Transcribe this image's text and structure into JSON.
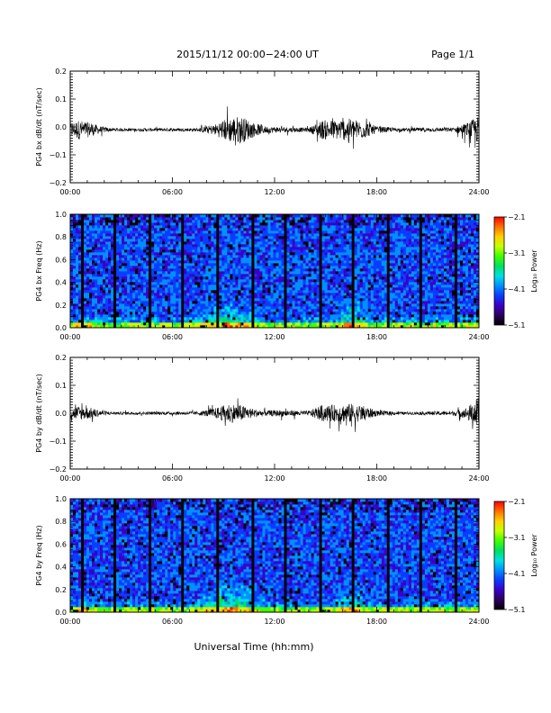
{
  "header": {
    "title": "2015/11/12  00:00−24:00 UT",
    "page": "Page 1/1"
  },
  "colorbar_colors": [
    "#000000",
    "#2a0060",
    "#3b00c8",
    "#0a3cff",
    "#0090ff",
    "#00e0e0",
    "#00e060",
    "#40ff00",
    "#c8ff00",
    "#ffd000",
    "#ff7000",
    "#ff0000"
  ],
  "chart_data": [
    {
      "type": "line",
      "ylabel": "PG4 bx dB/dt (nT/sec)",
      "xlim": [
        0,
        24
      ],
      "ylim": [
        -0.2,
        0.2
      ],
      "xticks": [
        {
          "v": 0,
          "label": "00:00"
        },
        {
          "v": 6,
          "label": "06:00"
        },
        {
          "v": 12,
          "label": "12:00"
        },
        {
          "v": 18,
          "label": "18:00"
        },
        {
          "v": 24,
          "label": "24:00"
        }
      ],
      "yticks": [
        {
          "v": -0.2,
          "label": "−0.2"
        },
        {
          "v": -0.1,
          "label": "−0.1"
        },
        {
          "v": 0,
          "label": "0.0"
        },
        {
          "v": 0.1,
          "label": "0.1"
        },
        {
          "v": 0.2,
          "label": "0.2"
        }
      ],
      "baseline": -0.01,
      "amplitude_profile": {
        "hours": [
          0,
          0.5,
          1.2,
          1.8,
          2.5,
          7.5,
          8.5,
          9.3,
          10.0,
          10.8,
          11.5,
          12.5,
          14.0,
          14.8,
          15.5,
          16.5,
          17.3,
          18.0,
          19.5,
          22.5,
          23.3,
          24
        ],
        "amp": [
          0.025,
          0.035,
          0.025,
          0.012,
          0.005,
          0.006,
          0.02,
          0.045,
          0.05,
          0.025,
          0.012,
          0.01,
          0.007,
          0.035,
          0.035,
          0.04,
          0.03,
          0.012,
          0.006,
          0.008,
          0.025,
          0.05
        ]
      }
    },
    {
      "type": "heatmap",
      "ylabel": "PG4 bx Freq (Hz)",
      "xlim": [
        0,
        24
      ],
      "ylim": [
        0,
        1
      ],
      "xticks": [
        {
          "v": 0,
          "label": "00:00"
        },
        {
          "v": 6,
          "label": "06:00"
        },
        {
          "v": 12,
          "label": "12:00"
        },
        {
          "v": 18,
          "label": "18:00"
        },
        {
          "v": 24,
          "label": "24:00"
        }
      ],
      "yticks": [
        {
          "v": 0,
          "label": "0.0"
        },
        {
          "v": 0.2,
          "label": "0.2"
        },
        {
          "v": 0.4,
          "label": "0.4"
        },
        {
          "v": 0.6,
          "label": "0.6"
        },
        {
          "v": 0.8,
          "label": "0.8"
        },
        {
          "v": 1.0,
          "label": "1.0"
        }
      ],
      "colorbar": {
        "label": "Log₁₀ Power",
        "range": [
          -5.1,
          -2.1
        ],
        "ticks": [
          {
            "v": -2.1,
            "label": "−2.1"
          },
          {
            "v": -3.1,
            "label": "−3.1"
          },
          {
            "v": -4.1,
            "label": "−4.1"
          },
          {
            "v": -5.1,
            "label": "−5.1"
          }
        ]
      },
      "gap_hours": [
        0.65,
        2.65,
        4.65,
        6.65,
        8.7,
        10.7,
        12.7,
        14.7,
        16.65,
        18.65,
        20.65,
        22.65
      ],
      "enhancements": [
        {
          "t0": 7.0,
          "t1": 11.5,
          "fmax": 0.25
        },
        {
          "t0": 15.5,
          "t1": 17.5,
          "fmax": 0.3
        },
        {
          "t0": 0.0,
          "t1": 1.5,
          "fmax": 0.12
        }
      ]
    },
    {
      "type": "line",
      "ylabel": "PG4 by dB/dt (nT/sec)",
      "xlim": [
        0,
        24
      ],
      "ylim": [
        -0.2,
        0.2
      ],
      "xticks": [
        {
          "v": 0,
          "label": "00:00"
        },
        {
          "v": 6,
          "label": "06:00"
        },
        {
          "v": 12,
          "label": "12:00"
        },
        {
          "v": 18,
          "label": "18:00"
        },
        {
          "v": 24,
          "label": "24:00"
        }
      ],
      "yticks": [
        {
          "v": -0.2,
          "label": "−0.2"
        },
        {
          "v": -0.1,
          "label": "−0.1"
        },
        {
          "v": 0,
          "label": "0.0"
        },
        {
          "v": 0.1,
          "label": "0.1"
        },
        {
          "v": 0.2,
          "label": "0.2"
        }
      ],
      "baseline": 0.0,
      "amplitude_profile": {
        "hours": [
          0,
          0.5,
          1.2,
          1.8,
          2.5,
          7.5,
          8.5,
          9.3,
          10.0,
          10.8,
          11.5,
          12.5,
          14.0,
          14.8,
          15.5,
          16.5,
          17.3,
          18.0,
          19.5,
          22.5,
          23.3,
          24
        ],
        "amp": [
          0.02,
          0.025,
          0.02,
          0.01,
          0.005,
          0.006,
          0.018,
          0.035,
          0.03,
          0.015,
          0.01,
          0.012,
          0.008,
          0.03,
          0.03,
          0.035,
          0.025,
          0.01,
          0.005,
          0.008,
          0.02,
          0.06
        ]
      }
    },
    {
      "type": "heatmap",
      "ylabel": "PG4 by Freq (Hz)",
      "xlim": [
        0,
        24
      ],
      "ylim": [
        0,
        1
      ],
      "xlabel": "Universal Time (hh:mm)",
      "xticks": [
        {
          "v": 0,
          "label": "00:00"
        },
        {
          "v": 6,
          "label": "06:00"
        },
        {
          "v": 12,
          "label": "12:00"
        },
        {
          "v": 18,
          "label": "18:00"
        },
        {
          "v": 24,
          "label": "24:00"
        }
      ],
      "yticks": [
        {
          "v": 0,
          "label": "0.0"
        },
        {
          "v": 0.2,
          "label": "0.2"
        },
        {
          "v": 0.4,
          "label": "0.4"
        },
        {
          "v": 0.6,
          "label": "0.6"
        },
        {
          "v": 0.8,
          "label": "0.8"
        },
        {
          "v": 1.0,
          "label": "1.0"
        }
      ],
      "colorbar": {
        "label": "Log₁₀ Power",
        "range": [
          -5.1,
          -2.1
        ],
        "ticks": [
          {
            "v": -2.1,
            "label": "−2.1"
          },
          {
            "v": -3.1,
            "label": "−3.1"
          },
          {
            "v": -4.1,
            "label": "−4.1"
          },
          {
            "v": -5.1,
            "label": "−5.1"
          }
        ]
      },
      "gap_hours": [
        0.65,
        2.65,
        4.65,
        6.65,
        8.7,
        10.7,
        12.7,
        14.7,
        16.65,
        18.65,
        20.65,
        22.65
      ],
      "enhancements": [
        {
          "t0": 7.0,
          "t1": 11.5,
          "fmax": 0.28
        },
        {
          "t0": 15.5,
          "t1": 17.5,
          "fmax": 0.25
        },
        {
          "t0": 0.0,
          "t1": 1.5,
          "fmax": 0.12
        }
      ]
    }
  ]
}
